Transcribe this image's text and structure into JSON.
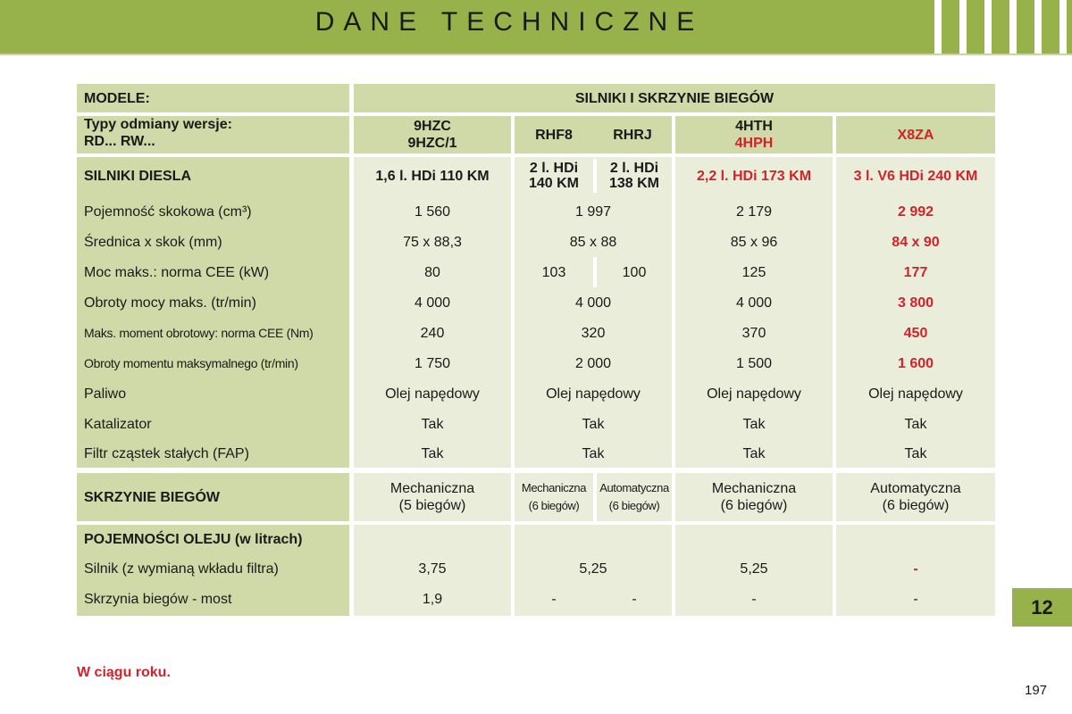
{
  "header": {
    "title": "DANE TECHNICZNE"
  },
  "table": {
    "head_left": "MODELE:",
    "head_right": "SILNIKI I SKRZYNIE BIEGÓW",
    "types_label_line1": "Typy odmiany wersje:",
    "types_label_line2": "RD... RW...",
    "types": {
      "c1_line1": "9HZC",
      "c1_line2": "9HZC/1",
      "c2a": "RHF8",
      "c2b": "RHRJ",
      "c3_line1": "4HTH",
      "c3_line2": "4HPH",
      "c4": "X8ZA"
    },
    "diesel": {
      "label": "SILNIKI DIESLA",
      "c1": "1,6 l. HDi 110 KM",
      "c2a_line1": "2 l. HDi",
      "c2a_line2": "140 KM",
      "c2b_line1": "2 l. HDi",
      "c2b_line2": "138 KM",
      "c3": "2,2 l. HDi 173 KM",
      "c4": "3 l. V6 HDi 240 KM"
    },
    "rows": [
      {
        "label": "Pojemność skokowa (cm³)",
        "c1": "1 560",
        "c2": "1 997",
        "c3": "2 179",
        "c4": "2 992"
      },
      {
        "label": "Średnica x skok (mm)",
        "c1": "75 x 88,3",
        "c2": "85 x 88",
        "c3": "85 x 96",
        "c4": "84 x 90"
      },
      {
        "label": "Moc maks.: norma CEE (kW)",
        "c1": "80",
        "c2a": "103",
        "c2b": "100",
        "c3": "125",
        "c4": "177"
      },
      {
        "label": "Obroty mocy maks. (tr/min)",
        "c1": "4 000",
        "c2": "4 000",
        "c3": "4 000",
        "c4": "3 800"
      },
      {
        "label": "Maks. moment obrotowy: norma CEE (Nm)",
        "c1": "240",
        "c2": "320",
        "c3": "370",
        "c4": "450"
      },
      {
        "label": "Obroty momentu maksymalnego (tr/min)",
        "c1": "1 750",
        "c2": "2 000",
        "c3": "1 500",
        "c4": "1 600"
      },
      {
        "label": "Paliwo",
        "c1": "Olej napędowy",
        "c2": "Olej napędowy",
        "c3": "Olej napędowy",
        "c4": "Olej napędowy"
      },
      {
        "label": "Katalizator",
        "c1": "Tak",
        "c2": "Tak",
        "c3": "Tak",
        "c4": "Tak"
      },
      {
        "label": "Filtr cząstek stałych (FAP)",
        "c1": "Tak",
        "c2": "Tak",
        "c3": "Tak",
        "c4": "Tak"
      }
    ],
    "gearbox": {
      "label": "SKRZYNIE BIEGÓW",
      "c1_line1": "Mechaniczna",
      "c1_line2": "(5 biegów)",
      "c2a_line1": "Mechaniczna",
      "c2a_line2": "(6 biegów)",
      "c2b_line1": "Automatyczna",
      "c2b_line2": "(6 biegów)",
      "c3_line1": "Mechaniczna",
      "c3_line2": "(6 biegów)",
      "c4_line1": "Automatyczna",
      "c4_line2": "(6 biegów)"
    },
    "oil": {
      "label": "POJEMNOŚCI OLEJU (w litrach)",
      "engine_label": "Silnik (z wymianą wkładu filtra)",
      "engine": {
        "c1": "3,75",
        "c2": "5,25",
        "c3": "5,25",
        "c4": "-"
      },
      "box_label": "Skrzynia biegów - most",
      "box": {
        "c1": "1,9",
        "c2a": "-",
        "c2b": "-",
        "c3": "-",
        "c4": "-"
      }
    }
  },
  "chapter_tab": "12",
  "footnote": "W ciągu roku.",
  "page_number": "197",
  "colors": {
    "accent": "#97b24a",
    "label_bg": "#cfdaa8",
    "value_bg": "#e9edda",
    "highlight": "#d2232a"
  }
}
